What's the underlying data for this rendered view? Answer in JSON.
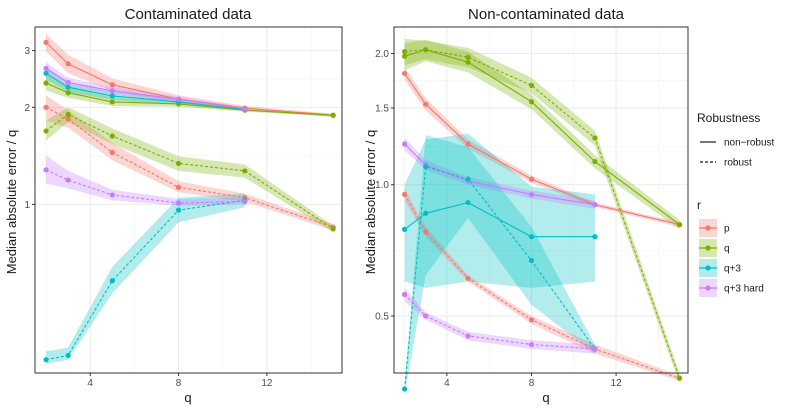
{
  "legend": {
    "robustness_title": "Robustness",
    "robustness_items": [
      {
        "label": "non−robust",
        "dash": "solid"
      },
      {
        "label": "robust",
        "dash": "dotted"
      }
    ],
    "r_title": "r",
    "r_items": [
      {
        "label": "p",
        "color": "#F8766D"
      },
      {
        "label": "q",
        "color": "#7CAE00"
      },
      {
        "label": "q+3",
        "color": "#00BFC4"
      },
      {
        "label": "q+3 hard",
        "color": "#C77CFF"
      }
    ]
  },
  "chart_data": [
    {
      "type": "line",
      "title": "Contaminated data",
      "xlabel": "q",
      "ylabel": "Median absolute error / q",
      "xlim": [
        1.5,
        15.4
      ],
      "ylim": [
        0.3,
        3.55
      ],
      "yscale": "log",
      "xticks": [
        4,
        8,
        12
      ],
      "yticks": [
        1,
        2,
        3
      ],
      "x": [
        2,
        3,
        5,
        8,
        11,
        15
      ],
      "series": [
        {
          "r": "p",
          "robustness": "non-robust",
          "x": [
            2,
            3,
            5,
            8,
            11,
            15
          ],
          "values": [
            3.18,
            2.73,
            2.35,
            2.12,
            1.99,
            1.89
          ],
          "lower": [
            2.98,
            2.55,
            2.25,
            2.06,
            1.96,
            1.87
          ],
          "upper": [
            3.38,
            2.91,
            2.46,
            2.18,
            2.02,
            1.91
          ]
        },
        {
          "r": "q",
          "robustness": "non-robust",
          "x": [
            2,
            3,
            5,
            8,
            11,
            15
          ],
          "values": [
            2.38,
            2.22,
            2.08,
            2.05,
            1.96,
            1.89
          ],
          "lower": [
            2.26,
            2.14,
            2.02,
            2.01,
            1.94,
            1.87
          ],
          "upper": [
            2.52,
            2.31,
            2.15,
            2.09,
            1.98,
            1.91
          ]
        },
        {
          "r": "q+3",
          "robustness": "non-robust",
          "x": [
            2,
            3,
            5,
            8,
            11
          ],
          "values": [
            2.55,
            2.31,
            2.17,
            2.08,
            1.97
          ],
          "lower": [
            2.44,
            2.23,
            2.11,
            2.04,
            1.95
          ],
          "upper": [
            2.67,
            2.39,
            2.24,
            2.12,
            1.99
          ]
        },
        {
          "r": "q+3 hard",
          "robustness": "non-robust",
          "x": [
            2,
            3,
            5,
            8,
            11
          ],
          "values": [
            2.64,
            2.39,
            2.25,
            2.12,
            1.98
          ],
          "lower": [
            2.52,
            2.31,
            2.19,
            2.08,
            1.96
          ],
          "upper": [
            2.76,
            2.47,
            2.31,
            2.16,
            2.0
          ]
        },
        {
          "r": "p",
          "robustness": "robust",
          "x": [
            2,
            3,
            5,
            8,
            11,
            15
          ],
          "values": [
            2.0,
            1.84,
            1.45,
            1.13,
            1.05,
            0.85
          ],
          "lower": [
            1.82,
            1.73,
            1.37,
            1.09,
            1.02,
            0.83
          ],
          "upper": [
            2.18,
            1.96,
            1.55,
            1.18,
            1.08,
            0.87
          ]
        },
        {
          "r": "q",
          "robustness": "robust",
          "x": [
            2,
            3,
            5,
            8,
            11,
            15
          ],
          "values": [
            1.69,
            1.9,
            1.63,
            1.34,
            1.27,
            0.84
          ],
          "lower": [
            1.58,
            1.8,
            1.54,
            1.27,
            1.21,
            0.82
          ],
          "upper": [
            1.82,
            2.0,
            1.72,
            1.41,
            1.33,
            0.86
          ]
        },
        {
          "r": "q+3",
          "robustness": "robust",
          "x": [
            2,
            3,
            5,
            8,
            11
          ],
          "values": [
            0.33,
            0.34,
            0.58,
            0.96,
            1.03
          ],
          "lower": [
            0.32,
            0.33,
            0.53,
            0.88,
            0.98
          ],
          "upper": [
            0.35,
            0.36,
            0.64,
            1.05,
            1.08
          ]
        },
        {
          "r": "q+3 hard",
          "robustness": "robust",
          "x": [
            2,
            3,
            5,
            8,
            11
          ],
          "values": [
            1.28,
            1.19,
            1.07,
            1.01,
            1.02
          ],
          "lower": [
            1.16,
            1.12,
            1.03,
            0.99,
            1.0
          ],
          "upper": [
            1.42,
            1.27,
            1.11,
            1.04,
            1.05
          ]
        }
      ]
    },
    {
      "type": "line",
      "title": "Non-contaminated data",
      "xlabel": "q",
      "ylabel": "Median absolute error / q",
      "xlim": [
        1.5,
        15.4
      ],
      "ylim": [
        0.37,
        2.3
      ],
      "yscale": "log",
      "xticks": [
        4,
        8,
        12
      ],
      "yticks": [
        0.5,
        1.0,
        1.5,
        2.0
      ],
      "ytick_labels": [
        "0.5",
        "1.0",
        "1.5",
        "2.0"
      ],
      "x": [
        2,
        3,
        5,
        8,
        11,
        15
      ],
      "series": [
        {
          "r": "p",
          "robustness": "non-robust",
          "x": [
            2,
            3,
            5,
            8,
            11,
            15
          ],
          "values": [
            1.8,
            1.53,
            1.24,
            1.03,
            0.9,
            0.81
          ],
          "lower": [
            1.74,
            1.48,
            1.21,
            1.01,
            0.89,
            0.8
          ],
          "upper": [
            1.86,
            1.58,
            1.27,
            1.05,
            0.91,
            0.82
          ]
        },
        {
          "r": "q",
          "robustness": "non-robust",
          "x": [
            2,
            3,
            5,
            8,
            11,
            15
          ],
          "values": [
            1.97,
            2.04,
            1.91,
            1.55,
            1.13,
            0.81
          ],
          "lower": [
            1.83,
            1.92,
            1.81,
            1.49,
            1.09,
            0.79
          ],
          "upper": [
            2.11,
            2.15,
            2.02,
            1.61,
            1.17,
            0.83
          ]
        },
        {
          "r": "q+3",
          "robustness": "non-robust",
          "x": [
            2,
            3,
            5,
            8,
            11
          ],
          "values": [
            0.79,
            0.86,
            0.91,
            0.76,
            0.76
          ],
          "lower": [
            0.6,
            0.58,
            0.6,
            0.58,
            0.6
          ],
          "upper": [
            1.0,
            1.27,
            1.31,
            0.99,
            0.95
          ]
        },
        {
          "r": "q+3 hard",
          "robustness": "non-robust",
          "x": [
            2,
            3,
            5,
            8,
            11
          ],
          "values": [
            1.24,
            1.11,
            1.02,
            0.95,
            0.9
          ],
          "lower": [
            1.2,
            1.08,
            1.0,
            0.93,
            0.88
          ],
          "upper": [
            1.28,
            1.14,
            1.04,
            0.97,
            0.92
          ]
        },
        {
          "r": "p",
          "robustness": "robust",
          "x": [
            2,
            3,
            5,
            8,
            11,
            15
          ],
          "values": [
            0.95,
            0.78,
            0.61,
            0.49,
            0.42,
            0.36
          ],
          "lower": [
            0.92,
            0.76,
            0.6,
            0.48,
            0.41,
            0.355
          ],
          "upper": [
            0.98,
            0.8,
            0.62,
            0.5,
            0.43,
            0.365
          ]
        },
        {
          "r": "q",
          "robustness": "robust",
          "x": [
            2,
            3,
            5,
            8,
            11,
            15
          ],
          "values": [
            2.02,
            2.04,
            1.96,
            1.69,
            1.28,
            0.36
          ],
          "lower": [
            1.88,
            1.94,
            1.86,
            1.62,
            1.23,
            0.35
          ],
          "upper": [
            2.16,
            2.14,
            2.06,
            1.76,
            1.33,
            0.37
          ]
        },
        {
          "r": "q+3",
          "robustness": "robust",
          "x": [
            2,
            3,
            5,
            8,
            11
          ],
          "values": [
            0.34,
            1.1,
            1.03,
            0.67,
            0.42
          ],
          "lower": [
            0.33,
            0.62,
            0.84,
            0.53,
            0.41
          ],
          "upper": [
            0.35,
            1.3,
            1.22,
            0.8,
            0.43
          ]
        },
        {
          "r": "q+3 hard",
          "robustness": "robust",
          "x": [
            2,
            3,
            5,
            8,
            11
          ],
          "values": [
            0.56,
            0.5,
            0.45,
            0.43,
            0.42
          ],
          "lower": [
            0.54,
            0.49,
            0.44,
            0.42,
            0.41
          ],
          "upper": [
            0.58,
            0.51,
            0.46,
            0.44,
            0.43
          ]
        }
      ]
    }
  ]
}
